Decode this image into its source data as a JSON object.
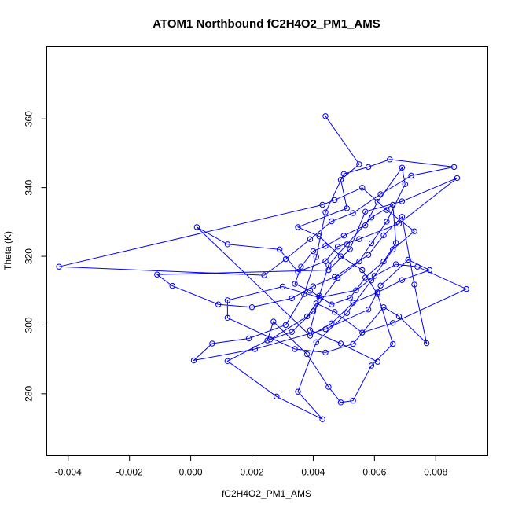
{
  "chart_data": {
    "type": "scatter",
    "title": "ATOM1 Northbound fC2H4O2_PM1_AMS",
    "xlabel": "fC2H4O2_PM1_AMS",
    "ylabel": "Theta (K)",
    "xlim": [
      -0.0047,
      0.0097
    ],
    "ylim": [
      262,
      381
    ],
    "xticks": [
      -0.004,
      -0.002,
      0.0,
      0.002,
      0.004,
      0.006,
      0.008
    ],
    "xtick_labels": [
      "-0.004",
      "-0.002",
      "0.000",
      "0.002",
      "0.004",
      "0.006",
      "0.008"
    ],
    "yticks": [
      280,
      300,
      320,
      340,
      360
    ],
    "ytick_labels": [
      "280",
      "300",
      "320",
      "340",
      "360"
    ],
    "color": "#0000ff",
    "points": [
      [
        0.0044,
        360.8
      ],
      [
        0.0055,
        346.8
      ],
      [
        0.0049,
        342.3
      ],
      [
        0.0051,
        334.0
      ],
      [
        0.0035,
        328.5
      ],
      [
        0.0042,
        325.8
      ],
      [
        0.0049,
        320.0
      ],
      [
        0.0056,
        316.0
      ],
      [
        0.0061,
        309.0
      ],
      [
        0.0066,
        294.5
      ],
      [
        0.0059,
        288.2
      ],
      [
        0.0053,
        278.0
      ],
      [
        0.0049,
        277.5
      ],
      [
        0.0045,
        282.0
      ],
      [
        0.0038,
        291.5
      ],
      [
        0.0027,
        301.0
      ],
      [
        0.0025,
        295.5
      ],
      [
        0.0012,
        289.5
      ],
      [
        0.0028,
        279.2
      ],
      [
        0.0043,
        272.6
      ],
      [
        0.0035,
        280.6
      ],
      [
        0.0041,
        295.0
      ],
      [
        0.0051,
        303.5
      ],
      [
        0.0059,
        313.0
      ],
      [
        0.0066,
        322.0
      ],
      [
        0.0073,
        327.3
      ],
      [
        0.0064,
        333.5
      ],
      [
        0.0056,
        340.0
      ],
      [
        0.0047,
        336.4
      ],
      [
        0.0043,
        335.0
      ],
      [
        -0.0043,
        317.0
      ],
      [
        0.0024,
        314.5
      ],
      [
        0.0031,
        319.2
      ],
      [
        0.0039,
        325.0
      ],
      [
        0.0046,
        330.2
      ],
      [
        0.0053,
        332.6
      ],
      [
        0.0062,
        338.1
      ],
      [
        0.0072,
        343.5
      ],
      [
        0.0086,
        346.0
      ],
      [
        0.0065,
        348.2
      ],
      [
        0.0058,
        346.0
      ],
      [
        0.005,
        344.0
      ],
      [
        0.0044,
        332.8
      ],
      [
        0.0041,
        319.8
      ],
      [
        0.0037,
        309.0
      ],
      [
        0.0031,
        300.0
      ],
      [
        0.0019,
        296.1
      ],
      [
        0.0007,
        294.6
      ],
      [
        0.0001,
        289.7
      ],
      [
        0.0021,
        293.0
      ],
      [
        0.0044,
        298.8
      ],
      [
        0.0058,
        304.5
      ],
      [
        0.0062,
        311.5
      ],
      [
        0.0071,
        319.0
      ],
      [
        0.0078,
        316.0
      ],
      [
        0.0069,
        313.1
      ],
      [
        0.0061,
        309.5
      ],
      [
        0.0053,
        306.5
      ],
      [
        0.0046,
        300.5
      ],
      [
        0.0039,
        296.9
      ],
      [
        0.0002,
        328.5
      ],
      [
        0.0012,
        323.5
      ],
      [
        0.0029,
        322.0
      ],
      [
        0.0035,
        315.5
      ],
      [
        0.0044,
        318.6
      ],
      [
        0.0048,
        322.8
      ],
      [
        0.0055,
        325.0
      ],
      [
        0.0068,
        329.5
      ],
      [
        0.0087,
        342.8
      ],
      [
        0.0069,
        336.0
      ],
      [
        0.0057,
        333.0
      ],
      [
        0.0052,
        322.1
      ],
      [
        0.0045,
        316.0
      ],
      [
        -0.0011,
        314.7
      ],
      [
        -0.0006,
        311.4
      ],
      [
        0.0009,
        306.0
      ],
      [
        0.002,
        305.2
      ],
      [
        0.0033,
        307.8
      ],
      [
        0.004,
        311.3
      ],
      [
        0.0047,
        314.0
      ],
      [
        0.0058,
        320.4
      ],
      [
        0.0063,
        326.1
      ],
      [
        0.0069,
        331.5
      ],
      [
        0.0073,
        311.8
      ],
      [
        0.0077,
        294.7
      ],
      [
        0.0068,
        302.5
      ],
      [
        0.0063,
        305.2
      ],
      [
        0.0053,
        294.5
      ],
      [
        0.0044,
        292.0
      ],
      [
        0.0034,
        293.0
      ],
      [
        0.0012,
        302.1
      ],
      [
        0.0012,
        307.2
      ],
      [
        0.003,
        311.2
      ],
      [
        0.0042,
        308.0
      ],
      [
        0.0054,
        310.1
      ],
      [
        0.006,
        314.3
      ],
      [
        0.0067,
        317.7
      ],
      [
        0.0074,
        317.0
      ],
      [
        0.009,
        310.5
      ],
      [
        0.0066,
        300.6
      ],
      [
        0.0056,
        297.8
      ],
      [
        0.0047,
        303.8
      ],
      [
        0.0041,
        306.3
      ],
      [
        0.0038,
        302.5
      ],
      [
        0.0026,
        295.8
      ],
      [
        0.0033,
        298.0
      ],
      [
        0.004,
        304.0
      ],
      [
        0.0048,
        313.7
      ],
      [
        0.0055,
        318.5
      ],
      [
        0.0059,
        323.8
      ],
      [
        0.0064,
        330.1
      ],
      [
        0.007,
        341.0
      ],
      [
        0.0069,
        345.8
      ],
      [
        0.0061,
        335.9
      ],
      [
        0.0057,
        329.0
      ],
      [
        0.005,
        326.0
      ],
      [
        0.0044,
        323.0
      ],
      [
        0.004,
        321.5
      ],
      [
        0.0036,
        317.0
      ],
      [
        0.0034,
        312.0
      ],
      [
        0.0039,
        310.0
      ],
      [
        0.0046,
        306.0
      ],
      [
        0.0052,
        307.9
      ],
      [
        0.0057,
        313.8
      ],
      [
        0.0063,
        318.5
      ],
      [
        0.0067,
        323.9
      ],
      [
        0.0066,
        335.0
      ],
      [
        0.0059,
        331.3
      ],
      [
        0.0051,
        323.5
      ],
      [
        0.0045,
        317.5
      ],
      [
        0.0042,
        308.5
      ],
      [
        0.0039,
        298.5
      ],
      [
        0.0049,
        294.6
      ],
      [
        0.0061,
        289.3
      ]
    ]
  }
}
